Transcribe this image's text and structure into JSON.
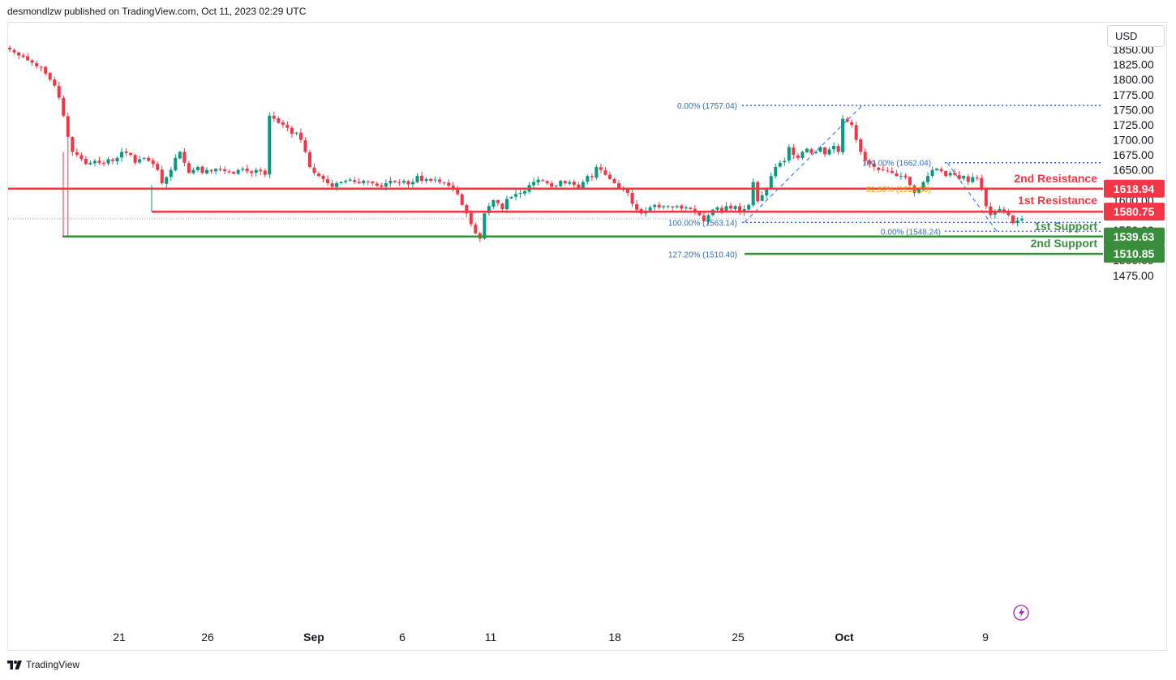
{
  "header": {
    "text": "desmondlzw published on TradingView.com, Oct 11, 2023 02:29 UTC"
  },
  "toolbar": {
    "currency": "USD"
  },
  "footer": {
    "brand": "TradingView",
    "logo_icon": "tradingview-logo-icon"
  },
  "colors": {
    "up": "#089981",
    "down": "#f23645",
    "resistance": "#f23645",
    "support": "#388e3c",
    "fib": "#2962ff",
    "fib_text": "#2f6fb5",
    "fib_618": "#ef9a00"
  },
  "chart_data": {
    "type": "candlestick",
    "title": "",
    "ylim": [
      1460,
      1860
    ],
    "y_ticks": [
      "1850.00",
      "1825.00",
      "1800.00",
      "1775.00",
      "1750.00",
      "1725.00",
      "1700.00",
      "1675.00",
      "1650.00",
      "1625.00",
      "1600.00",
      "1575.00",
      "1550.00",
      "1525.00",
      "1500.00",
      "1475.00"
    ],
    "x_ticks": [
      "21",
      "26",
      "Sep",
      "6",
      "11",
      "18",
      "25",
      "Oct",
      "9"
    ],
    "x_ticks_bold": [
      "Sep",
      "Oct"
    ],
    "levels": [
      {
        "name": "2nd Resistance",
        "price": 1618.94,
        "label": "1618.94",
        "kind": "resistance"
      },
      {
        "name": "1st Resistance",
        "price": 1580.75,
        "label": "1580.75",
        "kind": "resistance"
      },
      {
        "name": "1st Support",
        "price": 1539.63,
        "label": "1539.63",
        "kind": "support"
      },
      {
        "name": "2nd Support",
        "price": 1510.85,
        "label": "1510.85",
        "kind": "support"
      }
    ],
    "fib_labels": [
      {
        "text": "0.00% (1757.04)",
        "price": 1757.04
      },
      {
        "text": "100.00% (1662.04)",
        "price": 1662.04
      },
      {
        "text": "61.80% (1618.50)",
        "price": 1618.5
      },
      {
        "text": "100.00% (1563.14)",
        "price": 1563.14
      },
      {
        "text": "0.00% (1548.24)",
        "price": 1548.24
      },
      {
        "text": "127.20% (1510.40)",
        "price": 1510.4
      }
    ],
    "last_price": 1569,
    "close_path": [
      1850,
      1845,
      1840,
      1838,
      1832,
      1828,
      1822,
      1820,
      1810,
      1800,
      1790,
      1770,
      1740,
      1705,
      1680,
      1675,
      1668,
      1660,
      1662,
      1665,
      1662,
      1660,
      1668,
      1665,
      1670,
      1680,
      1678,
      1675,
      1662,
      1668,
      1670,
      1665,
      1660,
      1650,
      1628,
      1638,
      1650,
      1670,
      1680,
      1662,
      1645,
      1650,
      1655,
      1645,
      1650,
      1648,
      1652,
      1650,
      1648,
      1646,
      1644,
      1650,
      1652,
      1648,
      1645,
      1650,
      1648,
      1642,
      1740,
      1735,
      1728,
      1725,
      1720,
      1710,
      1712,
      1700,
      1680,
      1655,
      1645,
      1640,
      1635,
      1628,
      1622,
      1628,
      1630,
      1632,
      1634,
      1630,
      1628,
      1632,
      1630,
      1628,
      1624,
      1622,
      1628,
      1632,
      1630,
      1628,
      1632,
      1626,
      1630,
      1640,
      1632,
      1635,
      1632,
      1634,
      1630,
      1628,
      1624,
      1618,
      1610,
      1592,
      1578,
      1560,
      1545,
      1536,
      1578,
      1590,
      1600,
      1595,
      1585,
      1602,
      1605,
      1610,
      1612,
      1615,
      1625,
      1630,
      1634,
      1632,
      1628,
      1622,
      1624,
      1632,
      1628,
      1630,
      1625,
      1620,
      1630,
      1640,
      1638,
      1655,
      1650,
      1642,
      1635,
      1628,
      1620,
      1618,
      1612,
      1594,
      1584,
      1578,
      1582,
      1588,
      1592,
      1588,
      1590,
      1590,
      1588,
      1590,
      1586,
      1588,
      1585,
      1580,
      1575,
      1565,
      1575,
      1584,
      1588,
      1582,
      1590,
      1586,
      1590,
      1580,
      1585,
      1592,
      1630,
      1598,
      1608,
      1618,
      1640,
      1655,
      1662,
      1665,
      1688,
      1675,
      1670,
      1680,
      1685,
      1678,
      1680,
      1688,
      1676,
      1684,
      1690,
      1680,
      1735,
      1730,
      1725,
      1700,
      1680,
      1665,
      1660,
      1655,
      1650,
      1650,
      1648,
      1645,
      1640,
      1640,
      1638,
      1625,
      1612,
      1618,
      1630,
      1640,
      1650,
      1652,
      1648,
      1640,
      1645,
      1642,
      1635,
      1640,
      1630,
      1638,
      1636,
      1620,
      1590,
      1575,
      1580,
      1585,
      1580,
      1575,
      1562,
      1566,
      1569
    ]
  }
}
